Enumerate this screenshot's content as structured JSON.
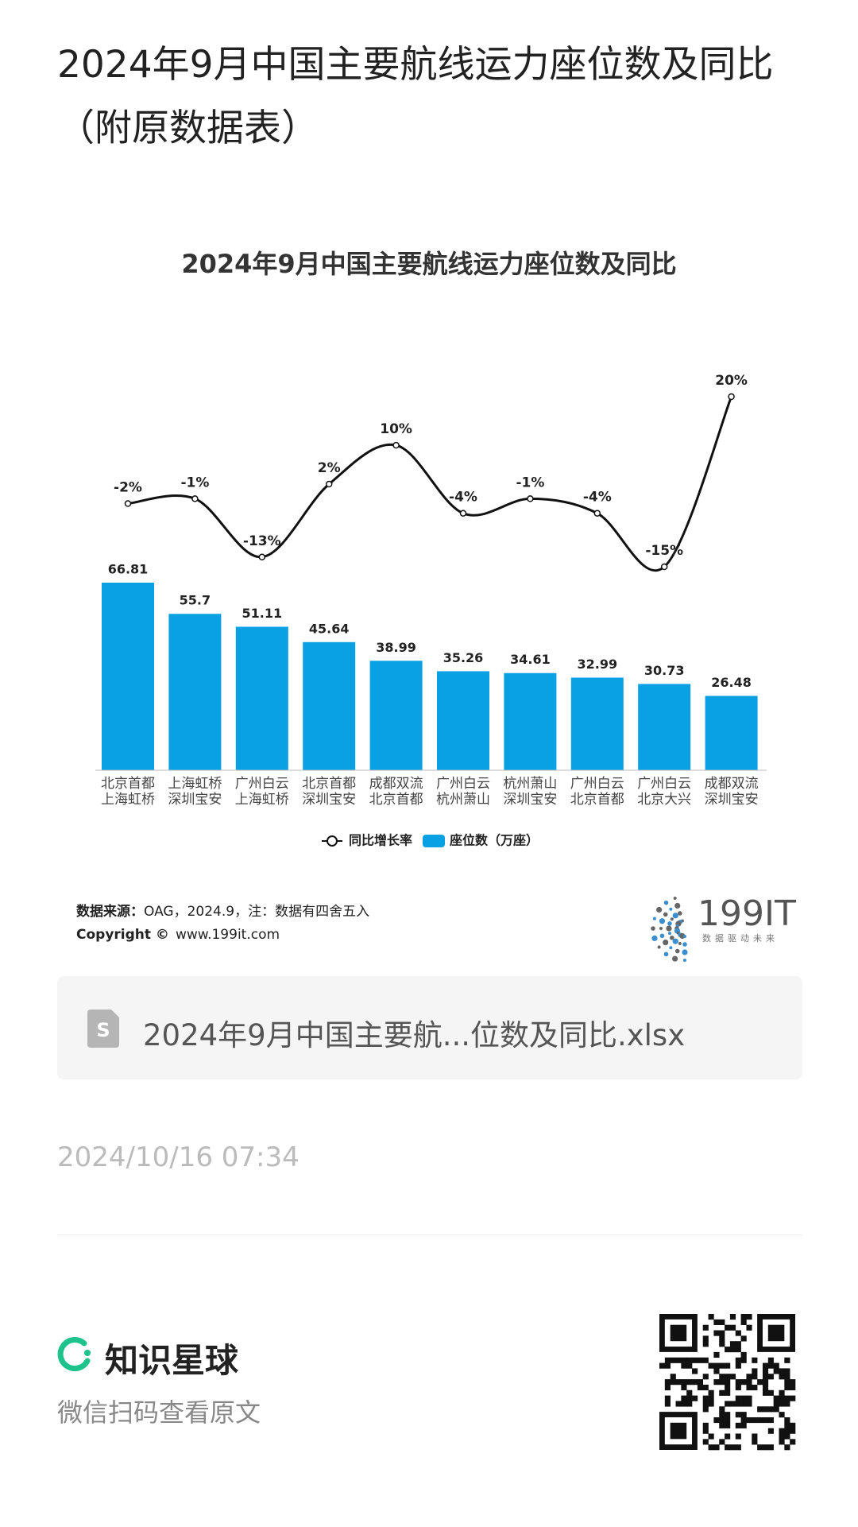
{
  "header": {
    "title": "2024年9月中国主要航线运力座位数及同比（附原数据表）"
  },
  "chart_data": {
    "type": "bar",
    "title": "2024年9月中国主要航线运力座位数及同比",
    "categories": [
      [
        "北京首都",
        "上海虹桥"
      ],
      [
        "上海虹桥",
        "深圳宝安"
      ],
      [
        "广州白云",
        "上海虹桥"
      ],
      [
        "北京首都",
        "深圳宝安"
      ],
      [
        "成都双流",
        "北京首都"
      ],
      [
        "广州白云",
        "杭州萧山"
      ],
      [
        "杭州萧山",
        "深圳宝安"
      ],
      [
        "广州白云",
        "北京首都"
      ],
      [
        "广州白云",
        "北京大兴"
      ],
      [
        "成都双流",
        "深圳宝安"
      ]
    ],
    "series": [
      {
        "name": "同比增长率",
        "type": "line",
        "color": "#111111",
        "values": [
          -2,
          -1,
          -13,
          2,
          10,
          -4,
          -1,
          -4,
          -15,
          20
        ],
        "value_labels": [
          "-2%",
          "-1%",
          "-13%",
          "2%",
          "10%",
          "-4%",
          "-1%",
          "-4%",
          "-15%",
          "20%"
        ]
      },
      {
        "name": "座位数（万座）",
        "type": "bar",
        "color": "#0aa0e4",
        "values": [
          66.81,
          55.7,
          51.11,
          45.64,
          38.99,
          35.26,
          34.61,
          32.99,
          30.73,
          26.48
        ]
      }
    ],
    "source_label": "数据来源：",
    "source": "OAG，2024.9，注：数据有四舍五入",
    "copyright_label": "Copyright ©",
    "copyright": "www.199it.com",
    "logo": "199IT",
    "logo_tagline": "数据驱动未来"
  },
  "attachment": {
    "filename": "2024年9月中国主要航...位数及同比.xlsx"
  },
  "date": "2024/10/16 07:34",
  "footer": {
    "brand": "知识星球",
    "hint": "微信扫码查看原文"
  }
}
